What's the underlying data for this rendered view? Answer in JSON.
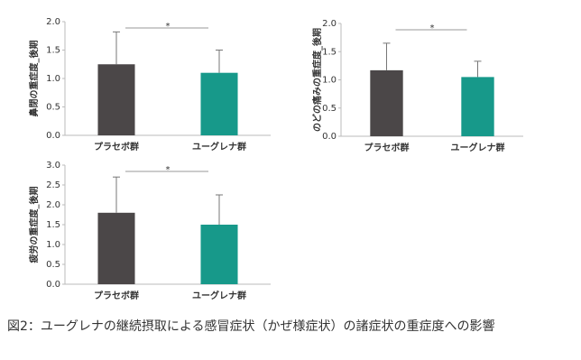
{
  "chart_data": [
    {
      "type": "bar",
      "y_label": "鼻閉の重症度_後期",
      "categories": [
        "プラセボ群",
        "ユーグレナ群"
      ],
      "values": [
        1.25,
        1.1
      ],
      "errors": [
        0.57,
        0.4
      ],
      "colors": [
        "#4b4748",
        "#17998a"
      ],
      "ylim": [
        0,
        2
      ],
      "yticks": [
        {
          "value": 0,
          "label": "0.0"
        },
        {
          "value": 0.5,
          "label": "0.5"
        },
        {
          "value": 1,
          "label": "1.0"
        },
        {
          "value": 1.5,
          "label": "1.5"
        },
        {
          "value": 2,
          "label": "2.0"
        }
      ],
      "significance": "*"
    },
    {
      "type": "bar",
      "y_label": "のどの痛みの重症度_後期",
      "categories": [
        "プラセボ群",
        "ユーグレナ群"
      ],
      "values": [
        1.17,
        1.05
      ],
      "errors": [
        0.48,
        0.28
      ],
      "colors": [
        "#4b4748",
        "#17998a"
      ],
      "ylim": [
        0,
        2
      ],
      "yticks": [
        {
          "value": 0,
          "label": "0.0"
        },
        {
          "value": 0.5,
          "label": "0.5"
        },
        {
          "value": 1,
          "label": "1.0"
        },
        {
          "value": 1.5,
          "label": "1.5"
        },
        {
          "value": 2,
          "label": "2.0"
        }
      ],
      "significance": "*"
    },
    {
      "type": "bar",
      "y_label": "疲労の重症度_後期",
      "categories": [
        "プラセボ群",
        "ユーグレナ群"
      ],
      "values": [
        1.8,
        1.5
      ],
      "errors": [
        0.9,
        0.75
      ],
      "colors": [
        "#4b4748",
        "#17998a"
      ],
      "ylim": [
        0,
        3
      ],
      "yticks": [
        {
          "value": 0,
          "label": "0.0"
        },
        {
          "value": 0.5,
          "label": "0.5"
        },
        {
          "value": 1,
          "label": "1.0"
        },
        {
          "value": 1.5,
          "label": "1.5"
        },
        {
          "value": 2,
          "label": "2.0"
        },
        {
          "value": 2.5,
          "label": "2.5"
        },
        {
          "value": 3,
          "label": "3.0"
        }
      ],
      "significance": "*"
    }
  ],
  "caption": "図2：ユーグレナの継続摂取による感冒症状（かぜ様症状）の諸症状の重症度への影響"
}
